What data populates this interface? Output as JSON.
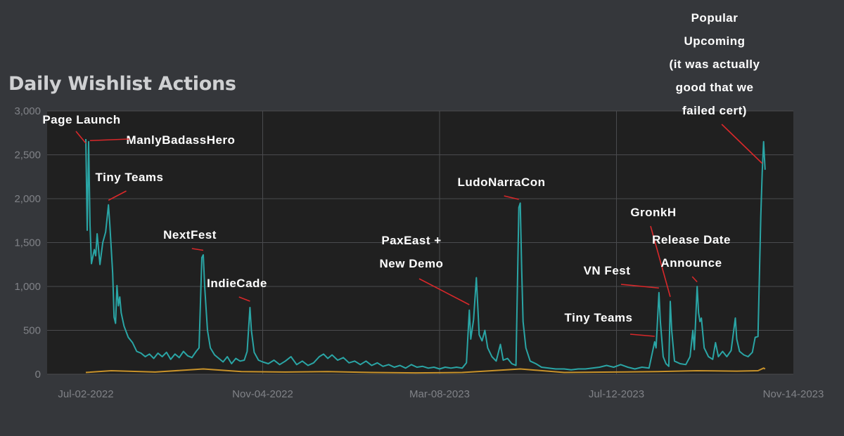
{
  "title": "Daily Wishlist Actions",
  "colors": {
    "background": "#35373b",
    "plot_background": "#202020",
    "grid": "#4a4b4e",
    "series_main": "#2aa5a5",
    "series_secondary": "#c8922a",
    "annotation_text": "#ffffff",
    "annotation_arrow": "#d9282a"
  },
  "chart_data": {
    "type": "line",
    "title": "Daily Wishlist Actions",
    "xlabel": "",
    "ylabel": "",
    "x_start": "2022-07-02",
    "x_end": "2023-11-14",
    "x_ticks": [
      "Jul-02-2022",
      "Nov-04-2022",
      "Mar-08-2023",
      "Jul-12-2023",
      "Nov-14-2023"
    ],
    "y_ticks": [
      "0",
      "500",
      "1,000",
      "1,500",
      "2,000",
      "2,500",
      "3,000"
    ],
    "ylim": [
      0,
      3000
    ],
    "grid": true,
    "series": [
      {
        "color": "#2aa5a5",
        "points": [
          [
            "2022-07-02",
            2680
          ],
          [
            "2022-07-03",
            1640
          ],
          [
            "2022-07-04",
            2650
          ],
          [
            "2022-07-05",
            1700
          ],
          [
            "2022-07-06",
            1260
          ],
          [
            "2022-07-08",
            1420
          ],
          [
            "2022-07-09",
            1350
          ],
          [
            "2022-07-10",
            1600
          ],
          [
            "2022-07-12",
            1250
          ],
          [
            "2022-07-14",
            1500
          ],
          [
            "2022-07-16",
            1620
          ],
          [
            "2022-07-18",
            1930
          ],
          [
            "2022-07-19",
            1700
          ],
          [
            "2022-07-21",
            1150
          ],
          [
            "2022-07-22",
            650
          ],
          [
            "2022-07-23",
            580
          ],
          [
            "2022-07-24",
            1010
          ],
          [
            "2022-07-25",
            780
          ],
          [
            "2022-07-26",
            880
          ],
          [
            "2022-07-27",
            700
          ],
          [
            "2022-07-29",
            550
          ],
          [
            "2022-08-01",
            420
          ],
          [
            "2022-08-04",
            360
          ],
          [
            "2022-08-07",
            260
          ],
          [
            "2022-08-10",
            240
          ],
          [
            "2022-08-13",
            200
          ],
          [
            "2022-08-16",
            230
          ],
          [
            "2022-08-19",
            180
          ],
          [
            "2022-08-22",
            240
          ],
          [
            "2022-08-25",
            200
          ],
          [
            "2022-08-28",
            250
          ],
          [
            "2022-08-31",
            170
          ],
          [
            "2022-09-03",
            230
          ],
          [
            "2022-09-06",
            190
          ],
          [
            "2022-09-09",
            260
          ],
          [
            "2022-09-12",
            210
          ],
          [
            "2022-09-15",
            190
          ],
          [
            "2022-09-18",
            260
          ],
          [
            "2022-09-20",
            300
          ],
          [
            "2022-09-22",
            1330
          ],
          [
            "2022-09-23",
            1360
          ],
          [
            "2022-09-24",
            1000
          ],
          [
            "2022-09-26",
            500
          ],
          [
            "2022-09-28",
            300
          ],
          [
            "2022-10-01",
            220
          ],
          [
            "2022-10-04",
            180
          ],
          [
            "2022-10-07",
            140
          ],
          [
            "2022-10-10",
            200
          ],
          [
            "2022-10-13",
            120
          ],
          [
            "2022-10-16",
            180
          ],
          [
            "2022-10-19",
            150
          ],
          [
            "2022-10-22",
            160
          ],
          [
            "2022-10-24",
            260
          ],
          [
            "2022-10-26",
            760
          ],
          [
            "2022-10-27",
            500
          ],
          [
            "2022-10-29",
            250
          ],
          [
            "2022-11-01",
            160
          ],
          [
            "2022-11-04",
            140
          ],
          [
            "2022-11-08",
            120
          ],
          [
            "2022-11-12",
            160
          ],
          [
            "2022-11-16",
            110
          ],
          [
            "2022-11-20",
            150
          ],
          [
            "2022-11-24",
            200
          ],
          [
            "2022-11-28",
            110
          ],
          [
            "2022-12-02",
            150
          ],
          [
            "2022-12-06",
            100
          ],
          [
            "2022-12-10",
            130
          ],
          [
            "2022-12-14",
            200
          ],
          [
            "2022-12-17",
            230
          ],
          [
            "2022-12-20",
            180
          ],
          [
            "2022-12-23",
            220
          ],
          [
            "2022-12-27",
            160
          ],
          [
            "2022-12-31",
            190
          ],
          [
            "2023-01-04",
            130
          ],
          [
            "2023-01-08",
            150
          ],
          [
            "2023-01-12",
            110
          ],
          [
            "2023-01-16",
            150
          ],
          [
            "2023-01-20",
            100
          ],
          [
            "2023-01-24",
            130
          ],
          [
            "2023-01-28",
            90
          ],
          [
            "2023-02-01",
            110
          ],
          [
            "2023-02-05",
            80
          ],
          [
            "2023-02-09",
            100
          ],
          [
            "2023-02-13",
            70
          ],
          [
            "2023-02-17",
            110
          ],
          [
            "2023-02-21",
            80
          ],
          [
            "2023-02-25",
            90
          ],
          [
            "2023-03-01",
            70
          ],
          [
            "2023-03-05",
            80
          ],
          [
            "2023-03-09",
            60
          ],
          [
            "2023-03-13",
            80
          ],
          [
            "2023-03-17",
            70
          ],
          [
            "2023-03-21",
            80
          ],
          [
            "2023-03-25",
            70
          ],
          [
            "2023-03-28",
            130
          ],
          [
            "2023-03-30",
            730
          ],
          [
            "2023-03-31",
            400
          ],
          [
            "2023-04-02",
            620
          ],
          [
            "2023-04-04",
            1100
          ],
          [
            "2023-04-06",
            450
          ],
          [
            "2023-04-08",
            380
          ],
          [
            "2023-04-10",
            500
          ],
          [
            "2023-04-12",
            300
          ],
          [
            "2023-04-15",
            200
          ],
          [
            "2023-04-18",
            150
          ],
          [
            "2023-04-21",
            340
          ],
          [
            "2023-04-23",
            160
          ],
          [
            "2023-04-26",
            180
          ],
          [
            "2023-04-29",
            120
          ],
          [
            "2023-05-02",
            100
          ],
          [
            "2023-05-04",
            1900
          ],
          [
            "2023-05-05",
            1950
          ],
          [
            "2023-05-06",
            1200
          ],
          [
            "2023-05-07",
            600
          ],
          [
            "2023-05-09",
            300
          ],
          [
            "2023-05-12",
            150
          ],
          [
            "2023-05-16",
            120
          ],
          [
            "2023-05-20",
            80
          ],
          [
            "2023-05-25",
            70
          ],
          [
            "2023-05-30",
            60
          ],
          [
            "2023-06-05",
            60
          ],
          [
            "2023-06-10",
            50
          ],
          [
            "2023-06-15",
            60
          ],
          [
            "2023-06-20",
            60
          ],
          [
            "2023-06-25",
            70
          ],
          [
            "2023-06-30",
            80
          ],
          [
            "2023-07-05",
            100
          ],
          [
            "2023-07-10",
            80
          ],
          [
            "2023-07-15",
            110
          ],
          [
            "2023-07-20",
            80
          ],
          [
            "2023-07-25",
            60
          ],
          [
            "2023-07-30",
            80
          ],
          [
            "2023-08-04",
            70
          ],
          [
            "2023-08-08",
            370
          ],
          [
            "2023-08-09",
            300
          ],
          [
            "2023-08-11",
            930
          ],
          [
            "2023-08-12",
            600
          ],
          [
            "2023-08-14",
            200
          ],
          [
            "2023-08-16",
            120
          ],
          [
            "2023-08-18",
            90
          ],
          [
            "2023-08-19",
            830
          ],
          [
            "2023-08-20",
            500
          ],
          [
            "2023-08-22",
            150
          ],
          [
            "2023-08-26",
            120
          ],
          [
            "2023-08-30",
            110
          ],
          [
            "2023-09-02",
            200
          ],
          [
            "2023-09-04",
            500
          ],
          [
            "2023-09-05",
            280
          ],
          [
            "2023-09-07",
            1000
          ],
          [
            "2023-09-08",
            700
          ],
          [
            "2023-09-09",
            600
          ],
          [
            "2023-09-10",
            640
          ],
          [
            "2023-09-12",
            300
          ],
          [
            "2023-09-15",
            200
          ],
          [
            "2023-09-18",
            170
          ],
          [
            "2023-09-20",
            360
          ],
          [
            "2023-09-22",
            200
          ],
          [
            "2023-09-25",
            260
          ],
          [
            "2023-09-28",
            200
          ],
          [
            "2023-10-01",
            270
          ],
          [
            "2023-10-04",
            640
          ],
          [
            "2023-10-05",
            400
          ],
          [
            "2023-10-07",
            260
          ],
          [
            "2023-10-10",
            220
          ],
          [
            "2023-10-13",
            200
          ],
          [
            "2023-10-16",
            250
          ],
          [
            "2023-10-18",
            420
          ],
          [
            "2023-10-20",
            430
          ],
          [
            "2023-10-22",
            1800
          ],
          [
            "2023-10-23",
            2300
          ],
          [
            "2023-10-24",
            2650
          ],
          [
            "2023-10-25",
            2330
          ]
        ]
      },
      {
        "color": "#c8922a",
        "points": [
          [
            "2022-07-02",
            20
          ],
          [
            "2022-07-20",
            40
          ],
          [
            "2022-08-20",
            25
          ],
          [
            "2022-09-23",
            60
          ],
          [
            "2022-10-20",
            30
          ],
          [
            "2022-11-20",
            25
          ],
          [
            "2022-12-20",
            30
          ],
          [
            "2023-01-20",
            20
          ],
          [
            "2023-02-20",
            15
          ],
          [
            "2023-03-25",
            20
          ],
          [
            "2023-04-10",
            35
          ],
          [
            "2023-05-05",
            60
          ],
          [
            "2023-06-05",
            20
          ],
          [
            "2023-07-10",
            25
          ],
          [
            "2023-08-10",
            30
          ],
          [
            "2023-09-07",
            40
          ],
          [
            "2023-10-05",
            35
          ],
          [
            "2023-10-20",
            40
          ],
          [
            "2023-10-24",
            70
          ],
          [
            "2023-10-25",
            60
          ]
        ]
      }
    ],
    "annotations": [
      {
        "lines": [
          "Page Launch"
        ],
        "arrow_to": [
          "2022-07-02",
          2600
        ]
      },
      {
        "lines": [
          "ManlyBadassHero"
        ],
        "arrow_to": [
          "2022-07-05",
          2630
        ]
      },
      {
        "lines": [
          "Tiny Teams"
        ],
        "arrow_to": [
          "2022-07-18",
          1950
        ]
      },
      {
        "lines": [
          "NextFest"
        ],
        "arrow_to": [
          "2022-09-23",
          1380
        ]
      },
      {
        "lines": [
          "IndieCade"
        ],
        "arrow_to": [
          "2022-10-26",
          800
        ]
      },
      {
        "lines": [
          "PaxEast +",
          "New Demo"
        ],
        "arrow_to": [
          "2023-03-30",
          760
        ]
      },
      {
        "lines": [
          "LudoNarraCon"
        ],
        "arrow_to": [
          "2023-05-04",
          1960
        ]
      },
      {
        "lines": [
          "Tiny Teams"
        ],
        "arrow_to": [
          "2023-08-08",
          400
        ]
      },
      {
        "lines": [
          "VN Fest"
        ],
        "arrow_to": [
          "2023-08-11",
          950
        ]
      },
      {
        "lines": [
          "GronkH"
        ],
        "arrow_to": [
          "2023-08-19",
          850
        ]
      },
      {
        "lines": [
          "Release Date",
          "Announce"
        ],
        "arrow_to": [
          "2023-09-07",
          1020
        ]
      },
      {
        "lines": [
          "Popular",
          "Upcoming",
          "(it was actually",
          "good that we",
          "failed cert)"
        ],
        "arrow_to": [
          "2023-10-23",
          2370
        ]
      }
    ]
  }
}
